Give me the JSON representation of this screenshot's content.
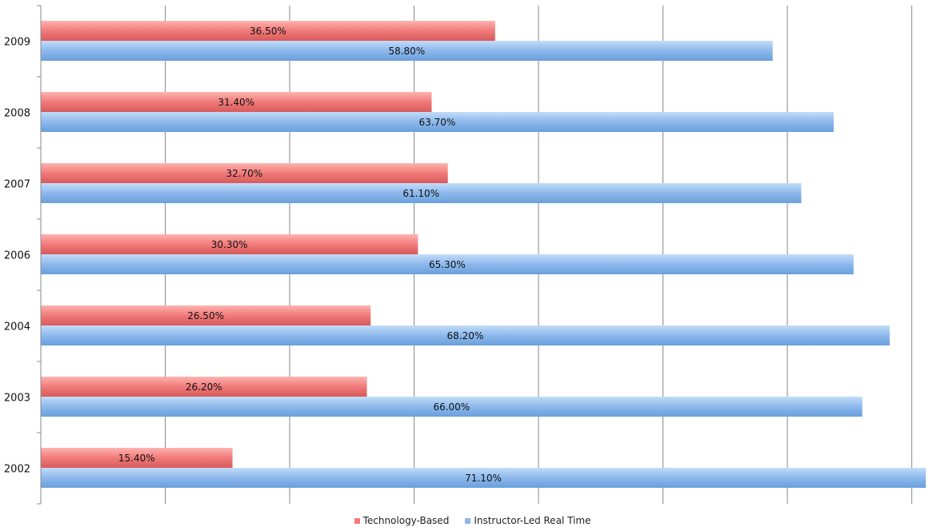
{
  "chart_data": {
    "type": "bar",
    "orientation": "horizontal",
    "categories": [
      "2009",
      "2008",
      "2007",
      "2006",
      "2004",
      "2003",
      "2002"
    ],
    "series": [
      {
        "name": "Technology-Based",
        "color": "#f07b7a",
        "values": [
          36.5,
          31.4,
          32.7,
          30.3,
          26.5,
          26.2,
          15.4
        ],
        "labels": [
          "36.50%",
          "31.40%",
          "32.70%",
          "30.30%",
          "26.50%",
          "26.20%",
          "15.40%"
        ]
      },
      {
        "name": "Instructor-Led Real Time",
        "color": "#8db8ec",
        "values": [
          58.8,
          63.7,
          61.1,
          65.3,
          68.2,
          66.0,
          71.1
        ],
        "labels": [
          "58.80%",
          "63.70%",
          "61.10%",
          "65.30%",
          "68.20%",
          "66.00%",
          "71.10%"
        ]
      }
    ],
    "xlim": [
      0,
      71.1
    ],
    "grid": true,
    "legend_position": "bottom"
  }
}
